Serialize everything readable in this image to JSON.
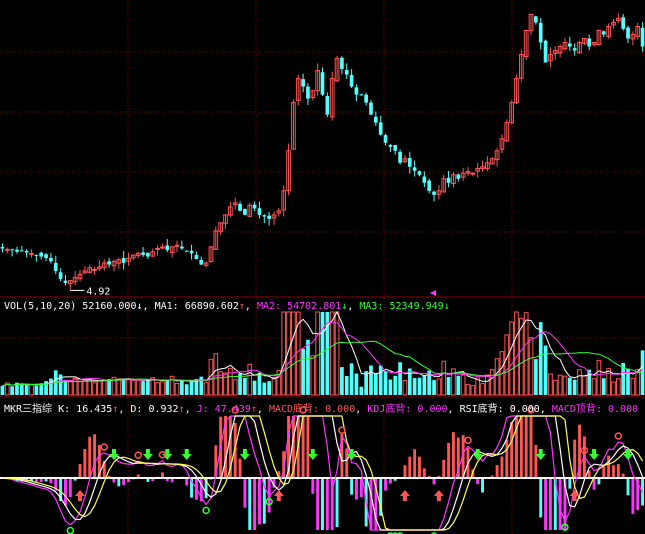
{
  "colors": {
    "background": "#000000",
    "up": "#ff5555",
    "down": "#54ffff",
    "grid": "#8b0000",
    "ma1": "#ffffff",
    "ma2": "#ff33ff",
    "ma3": "#33ff33",
    "vol_label": "#ffffff",
    "mkr_k": "#ffffff",
    "mkr_d": "#ffff55",
    "mkr_j": "#ff33ff",
    "signal": "#ff5555",
    "kdj": "#ff33ff"
  },
  "chart_data": [
    {
      "type": "candlestick",
      "panel": "price",
      "low_marker": "4.92",
      "closes": [
        5.38,
        5.37,
        5.36,
        5.34,
        5.35,
        5.33,
        5.32,
        5.3,
        5.28,
        5.26,
        5.22,
        5.1,
        5.0,
        4.95,
        4.98,
        5.02,
        5.06,
        5.1,
        5.14,
        5.12,
        5.15,
        5.2,
        5.18,
        5.22,
        5.24,
        5.2,
        5.26,
        5.3,
        5.32,
        5.3,
        5.28,
        5.34,
        5.38,
        5.4,
        5.36,
        5.4,
        5.42,
        5.38,
        5.35,
        5.32,
        5.25,
        5.18,
        5.2,
        5.4,
        5.6,
        5.7,
        5.8,
        5.9,
        5.95,
        5.85,
        5.8,
        5.92,
        5.88,
        5.8,
        5.78,
        5.75,
        5.8,
        5.85,
        6.1,
        6.6,
        7.2,
        7.5,
        7.4,
        7.25,
        7.35,
        7.6,
        7.3,
        7.05,
        7.5,
        7.75,
        7.62,
        7.55,
        7.4,
        7.3,
        7.3,
        7.2,
        7.05,
        6.95,
        6.8,
        6.7,
        6.65,
        6.6,
        6.45,
        6.5,
        6.4,
        6.35,
        6.3,
        6.2,
        6.1,
        6.05,
        6.1,
        6.25,
        6.2,
        6.3,
        6.25,
        6.32,
        6.34,
        6.32,
        6.38,
        6.4,
        6.45,
        6.5,
        6.6,
        6.75,
        6.95,
        7.2,
        7.5,
        7.8,
        8.1,
        8.3,
        8.2,
        7.95,
        7.7,
        7.8,
        7.85,
        7.9,
        7.95,
        7.9,
        7.85,
        7.95,
        8.0,
        7.9,
        7.95,
        8.1,
        8.05,
        8.15,
        8.2,
        8.25,
        8.12,
        8.0,
        8.05,
        8.15,
        7.9
      ]
    },
    {
      "type": "bar",
      "panel": "volume",
      "legend": {
        "name": "VOL(5,10,20)",
        "vol": "52160.000",
        "vol_arrow": "↓",
        "ma1_label": "MA1:",
        "ma1": "66890.602",
        "ma1_arrow": "↑",
        "ma2_label": "MA2:",
        "ma2": "54702.801",
        "ma2_arrow": "↓",
        "ma3_label": "MA3:",
        "ma3": "52349.949",
        "ma3_arrow": "↓"
      },
      "ylim": [
        0,
        100000
      ]
    },
    {
      "type": "line",
      "panel": "indicator",
      "legend": {
        "name": "MKR三指综",
        "k_label": "K:",
        "k": "16.435",
        "k_arrow": "↑",
        "d_label": "D:",
        "d": "0.932",
        "d_arrow": "↑",
        "j_label": "J:",
        "j": "47.439",
        "j_arrow": "↑",
        "macd_bottom_label": "MACD底背:",
        "macd_bottom": "0.000",
        "kdj_bottom_label": "KDJ底背:",
        "kdj_bottom": "0.000",
        "rsi_bottom_label": "RSI底背:",
        "rsi_bottom": "0.000",
        "macd_top_label": "MACD顶背:",
        "macd_top": "0.000"
      }
    }
  ]
}
